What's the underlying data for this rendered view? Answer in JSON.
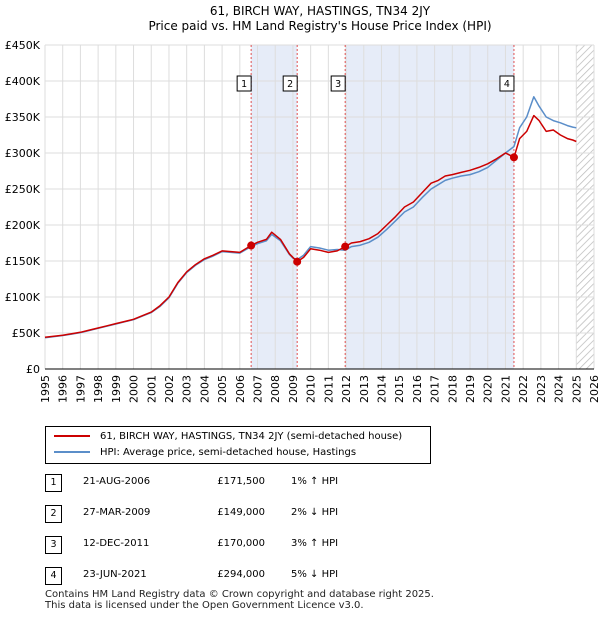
{
  "chart_data": {
    "type": "line",
    "title": "61, BIRCH WAY, HASTINGS, TN34 2JY",
    "subtitle": "Price paid vs. HM Land Registry's House Price Index (HPI)",
    "xlabel": "",
    "ylabel": "",
    "xlim": [
      1995,
      2026
    ],
    "ylim": [
      0,
      450000
    ],
    "x_ticks": [
      1995,
      1996,
      1997,
      1998,
      1999,
      2000,
      2001,
      2002,
      2003,
      2004,
      2005,
      2006,
      2007,
      2008,
      2009,
      2010,
      2011,
      2012,
      2013,
      2014,
      2015,
      2016,
      2017,
      2018,
      2019,
      2020,
      2021,
      2022,
      2023,
      2024,
      2025,
      2026
    ],
    "y_ticks": [
      0,
      50000,
      100000,
      150000,
      200000,
      250000,
      300000,
      350000,
      400000,
      450000
    ],
    "y_tick_labels": [
      "£0",
      "£50K",
      "£100K",
      "£150K",
      "£200K",
      "£250K",
      "£300K",
      "£350K",
      "£400K",
      "£450K"
    ],
    "grid": true,
    "colors": {
      "property": "#cc0000",
      "hpi": "#5b8ec9",
      "shade": "#e6ecf8",
      "marker_line": "#e05050",
      "hatch": "#bbbbbb"
    },
    "series": [
      {
        "name": "61, BIRCH WAY, HASTINGS, TN34 2JY (semi-detached house)",
        "color": "#cc0000",
        "x": [
          1995.0,
          1995.5,
          1996.0,
          1996.5,
          1997.0,
          1997.5,
          1998.0,
          1998.5,
          1999.0,
          1999.5,
          2000.0,
          2000.5,
          2001.0,
          2001.5,
          2002.0,
          2002.5,
          2003.0,
          2003.5,
          2004.0,
          2004.5,
          2005.0,
          2005.5,
          2006.0,
          2006.64,
          2007.0,
          2007.5,
          2007.8,
          2008.3,
          2008.8,
          2009.0,
          2009.24,
          2009.6,
          2010.0,
          2010.5,
          2011.0,
          2011.5,
          2011.95,
          2012.3,
          2012.8,
          2013.3,
          2013.8,
          2014.3,
          2014.8,
          2015.3,
          2015.8,
          2016.3,
          2016.8,
          2017.2,
          2017.6,
          2018.0,
          2018.5,
          2019.0,
          2019.5,
          2020.0,
          2020.5,
          2021.0,
          2021.48,
          2021.8,
          2022.2,
          2022.6,
          2022.9,
          2023.3,
          2023.7,
          2024.1,
          2024.5,
          2024.8,
          2025.0
        ],
        "y": [
          44000,
          45500,
          47000,
          49000,
          51000,
          54000,
          57000,
          60000,
          63000,
          66000,
          69000,
          74000,
          79000,
          88000,
          100000,
          120000,
          135000,
          145000,
          153000,
          158000,
          164000,
          163000,
          162000,
          171500,
          176000,
          180000,
          190000,
          180000,
          160000,
          155000,
          149000,
          155000,
          167000,
          165000,
          162000,
          164000,
          170000,
          175000,
          177000,
          181000,
          188000,
          200000,
          212000,
          225000,
          232000,
          245000,
          258000,
          262000,
          268000,
          270000,
          273000,
          276000,
          280000,
          285000,
          292000,
          300000,
          294000,
          320000,
          330000,
          352000,
          345000,
          330000,
          332000,
          325000,
          320000,
          318000,
          316000
        ]
      },
      {
        "name": "HPI: Average price, semi-detached house, Hastings",
        "color": "#5b8ec9",
        "x": [
          1995.0,
          1995.5,
          1996.0,
          1996.5,
          1997.0,
          1997.5,
          1998.0,
          1998.5,
          1999.0,
          1999.5,
          2000.0,
          2000.5,
          2001.0,
          2001.5,
          2002.0,
          2002.5,
          2003.0,
          2003.5,
          2004.0,
          2004.5,
          2005.0,
          2005.5,
          2006.0,
          2006.64,
          2007.0,
          2007.5,
          2007.8,
          2008.3,
          2008.8,
          2009.0,
          2009.24,
          2009.6,
          2010.0,
          2010.5,
          2011.0,
          2011.5,
          2011.95,
          2012.3,
          2012.8,
          2013.3,
          2013.8,
          2014.3,
          2014.8,
          2015.3,
          2015.8,
          2016.3,
          2016.8,
          2017.2,
          2017.6,
          2018.0,
          2018.5,
          2019.0,
          2019.5,
          2020.0,
          2020.5,
          2021.0,
          2021.48,
          2021.8,
          2022.2,
          2022.6,
          2022.9,
          2023.3,
          2023.7,
          2024.1,
          2024.5,
          2024.8,
          2025.0
        ],
        "y": [
          43500,
          45000,
          46500,
          48500,
          50500,
          53500,
          56500,
          59500,
          62500,
          65500,
          68500,
          73500,
          78500,
          87000,
          99000,
          119000,
          134000,
          144000,
          152000,
          157000,
          163000,
          162000,
          161000,
          170000,
          174000,
          178000,
          187000,
          178000,
          159000,
          154000,
          152000,
          158000,
          170000,
          168000,
          165000,
          166000,
          165000,
          170000,
          172000,
          176000,
          183000,
          194000,
          206000,
          218000,
          225000,
          238000,
          250000,
          256000,
          262000,
          265000,
          268000,
          270000,
          274000,
          280000,
          290000,
          300000,
          309000,
          335000,
          350000,
          378000,
          365000,
          350000,
          345000,
          342000,
          338000,
          336000,
          335000
        ]
      }
    ],
    "sales": [
      {
        "num": "1",
        "x": 2006.64,
        "y": 171500
      },
      {
        "num": "2",
        "x": 2009.24,
        "y": 149000
      },
      {
        "num": "3",
        "x": 2011.95,
        "y": 170000
      },
      {
        "num": "4",
        "x": 2021.48,
        "y": 294000
      }
    ],
    "shaded_ranges": [
      [
        2006.64,
        2009.24
      ],
      [
        2011.95,
        2021.48
      ]
    ],
    "hatched_from": 2025.0
  },
  "legend": {
    "property_label": "61, BIRCH WAY, HASTINGS, TN34 2JY (semi-detached house)",
    "hpi_label": "HPI: Average price, semi-detached house, Hastings"
  },
  "sales_table": [
    {
      "num": "1",
      "date": "21-AUG-2006",
      "price": "£171,500",
      "hpi": "1% ↑ HPI"
    },
    {
      "num": "2",
      "date": "27-MAR-2009",
      "price": "£149,000",
      "hpi": "2% ↓ HPI"
    },
    {
      "num": "3",
      "date": "12-DEC-2011",
      "price": "£170,000",
      "hpi": "3% ↑ HPI"
    },
    {
      "num": "4",
      "date": "23-JUN-2021",
      "price": "£294,000",
      "hpi": "5% ↓ HPI"
    }
  ],
  "footer": {
    "line1": "Contains HM Land Registry data © Crown copyright and database right 2025.",
    "line2": "This data is licensed under the Open Government Licence v3.0."
  }
}
